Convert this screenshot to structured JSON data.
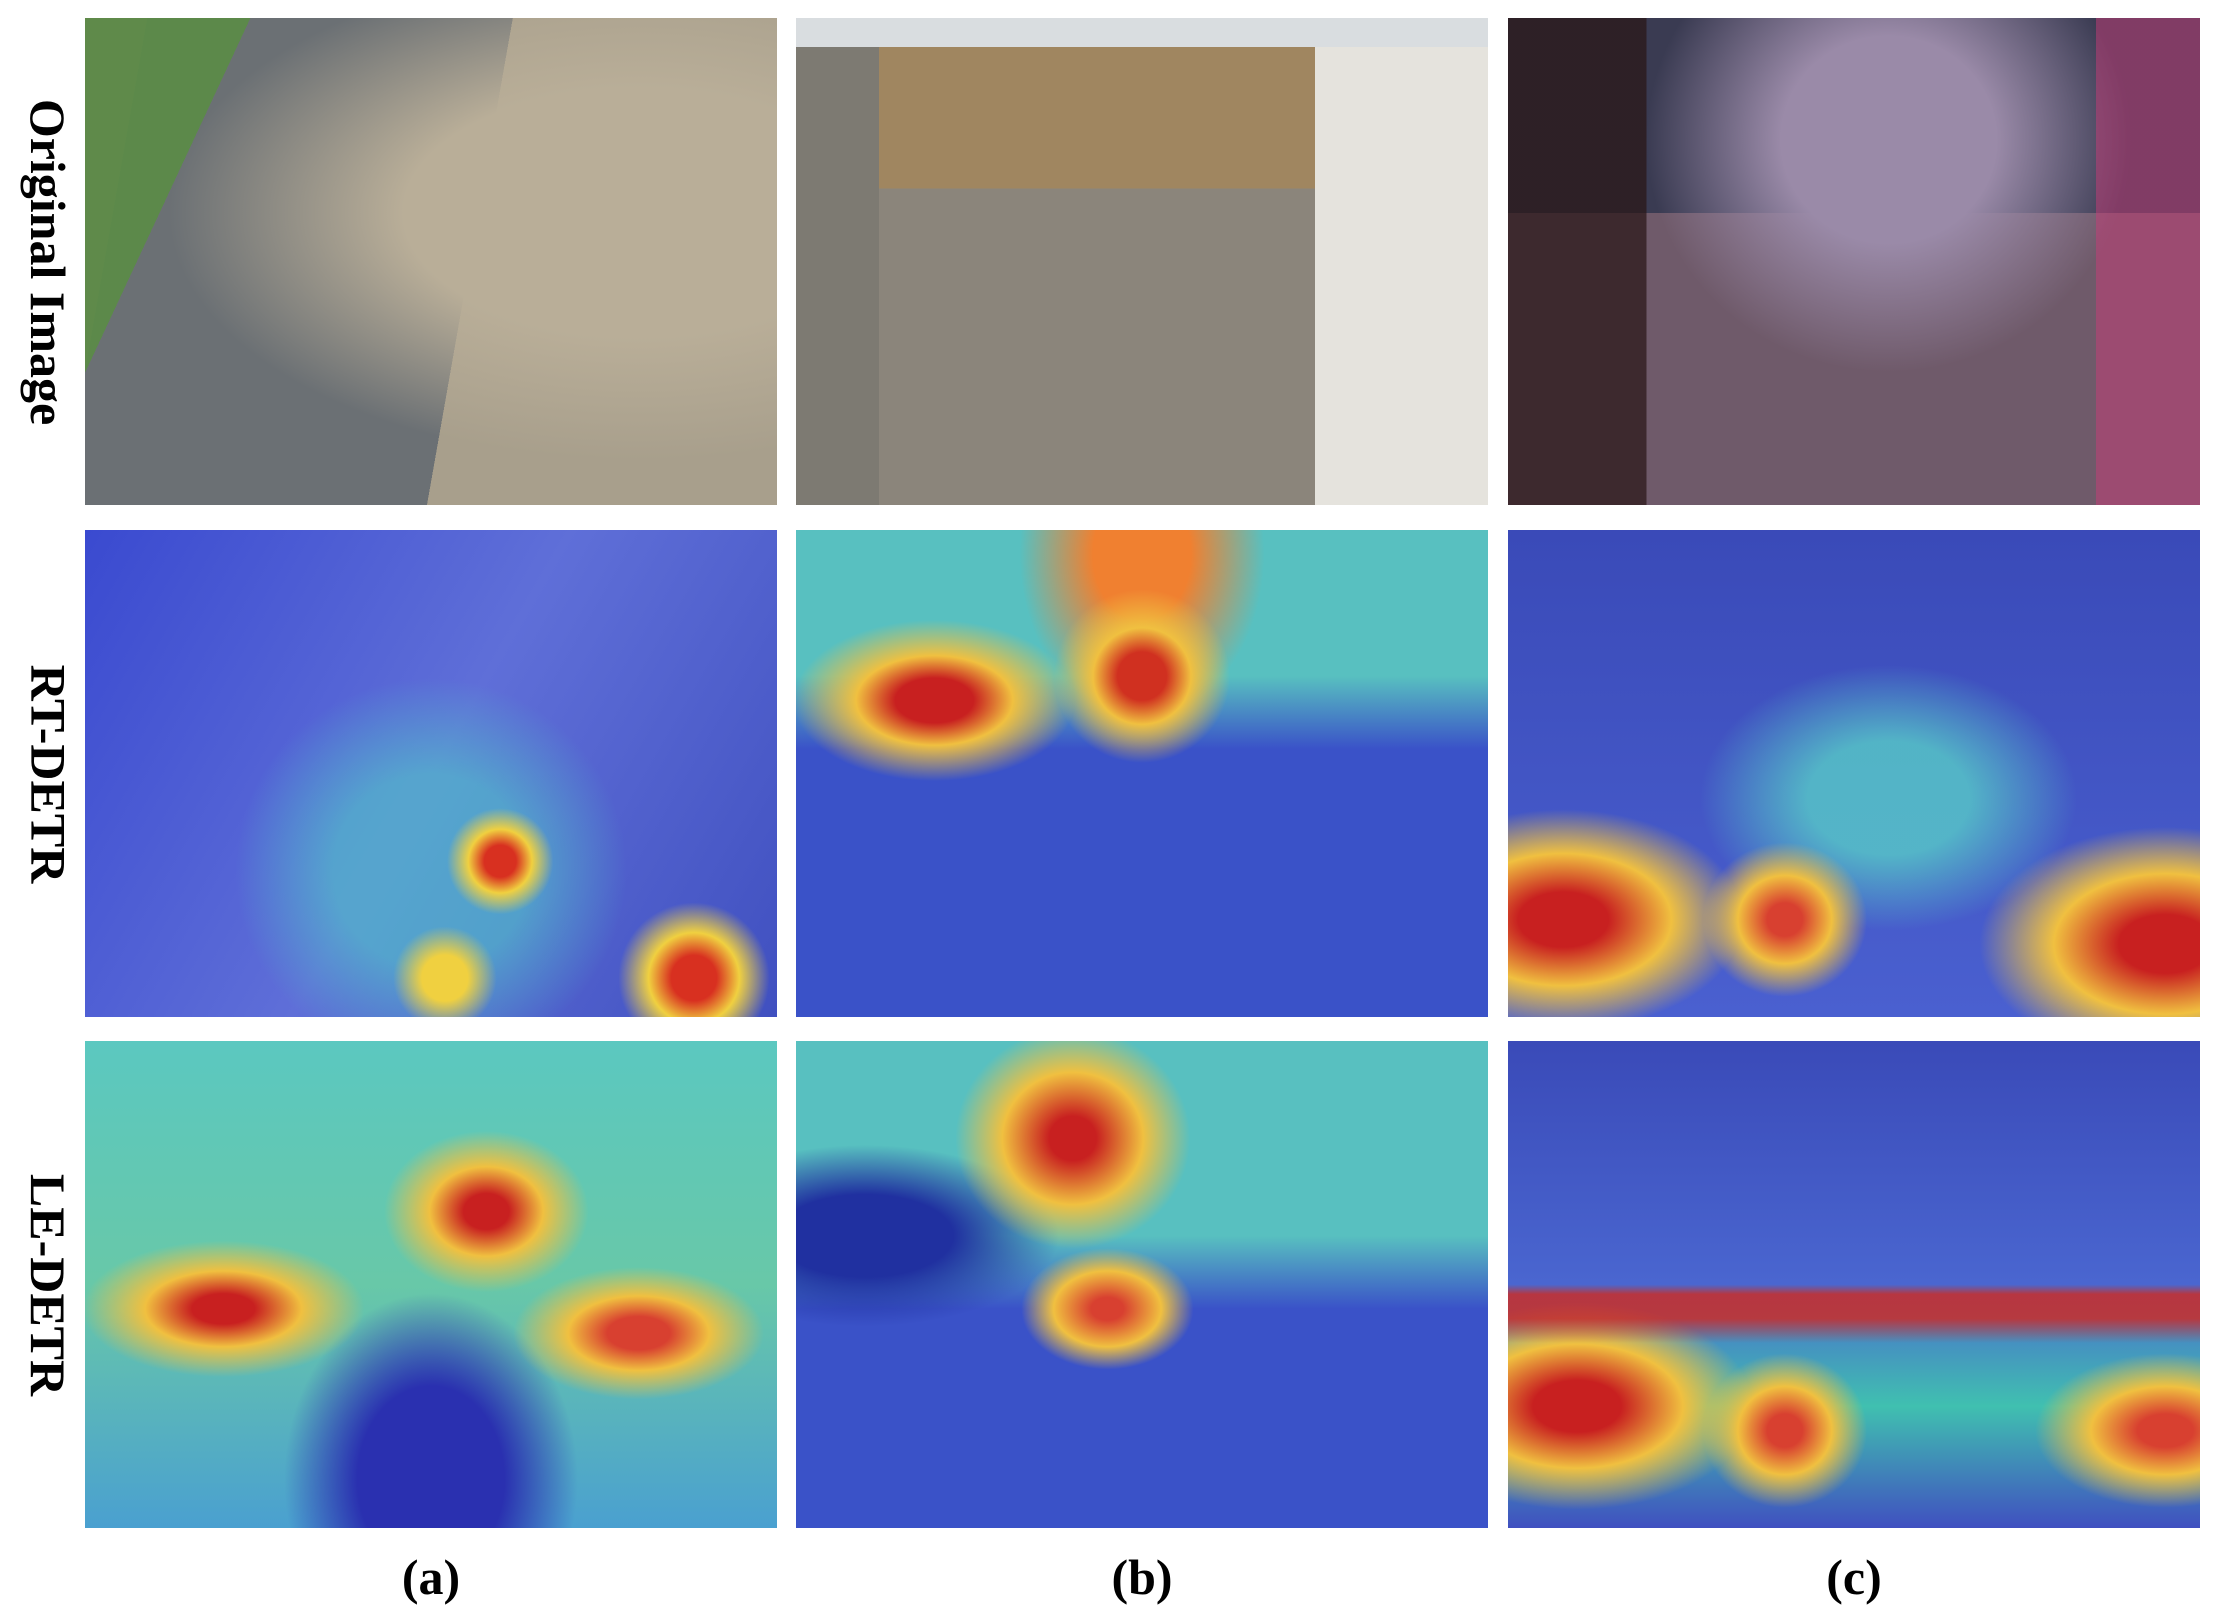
{
  "figure": {
    "row_labels": [
      "Original Image",
      "RT-DETR",
      "LE-DETR"
    ],
    "column_labels": [
      "(a)",
      "(b)",
      "(c)"
    ]
  }
}
